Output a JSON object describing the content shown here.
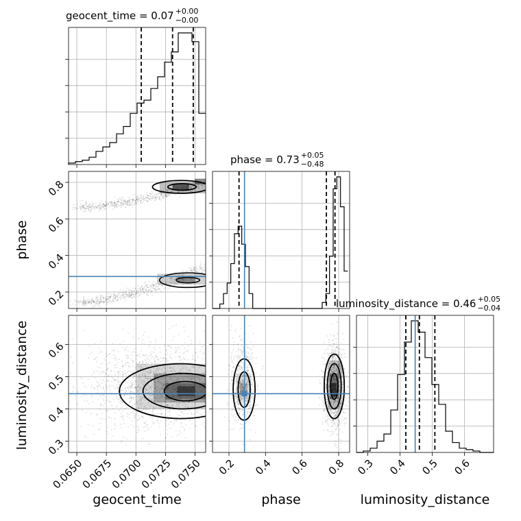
{
  "chart_data": {
    "type": "corner",
    "parameters": [
      "geocent_time",
      "phase",
      "luminosity_distance"
    ],
    "titles": [
      {
        "param": "geocent_time",
        "label": "geocent_time",
        "median": "0.07",
        "plus": "+0.00",
        "minus": "−0.00"
      },
      {
        "param": "phase",
        "label": "phase",
        "median": "0.73",
        "plus": "+0.05",
        "minus": "−0.48"
      },
      {
        "param": "luminosity_distance",
        "label": "luminosity_distance",
        "median": "0.46",
        "plus": "+0.05",
        "minus": "−0.04"
      }
    ],
    "axis_labels": {
      "x": [
        "geocent_time",
        "phase",
        "luminosity_distance"
      ],
      "y": [
        "phase",
        "luminosity_distance"
      ]
    },
    "ranges": {
      "geocent_time": [
        0.0643,
        0.0759
      ],
      "phase": [
        0.11,
        0.86
      ],
      "luminosity_distance": [
        0.265,
        0.69
      ]
    },
    "ticks": {
      "geocent_time": {
        "values": [
          0.065,
          0.0675,
          0.07,
          0.0725,
          0.075
        ],
        "labels": [
          "0.0650",
          "0.0675",
          "0.0700",
          "0.0725",
          "0.0750"
        ]
      },
      "phase_x": {
        "values": [
          0.2,
          0.4,
          0.6,
          0.8
        ],
        "labels": [
          "0.2",
          "0.4",
          "0.6",
          "0.8"
        ]
      },
      "phase_y": {
        "values": [
          0.2,
          0.4,
          0.6,
          0.8
        ],
        "labels": [
          "0.2",
          "0.4",
          "0.6",
          "0.8"
        ]
      },
      "luminosity_distance_x": {
        "values": [
          0.3,
          0.4,
          0.5,
          0.6
        ],
        "labels": [
          "0.3",
          "0.4",
          "0.5",
          "0.6"
        ]
      },
      "luminosity_distance_y": {
        "values": [
          0.3,
          0.4,
          0.5,
          0.6
        ],
        "labels": [
          "0.3",
          "0.4",
          "0.5",
          "0.6"
        ]
      }
    },
    "truths": {
      "phase": 0.285,
      "luminosity_distance": 0.447
    },
    "quantiles": {
      "geocent_time": [
        0.07045,
        0.0731,
        0.07485
      ],
      "phase": [
        0.255,
        0.733,
        0.78
      ],
      "luminosity_distance": [
        0.418,
        0.46,
        0.508
      ]
    },
    "histograms": {
      "geocent_time": {
        "edges": [
          0.0643,
          0.06488,
          0.06546,
          0.06604,
          0.06662,
          0.0672,
          0.06778,
          0.06836,
          0.06894,
          0.06952,
          0.0701,
          0.07068,
          0.07126,
          0.07184,
          0.07242,
          0.073,
          0.07358,
          0.07416,
          0.07474,
          0.07532,
          0.0759
        ],
        "counts": [
          1,
          2,
          3,
          5,
          9,
          12,
          15,
          21,
          26,
          35,
          42,
          44,
          52,
          60,
          70,
          77,
          90,
          90,
          84,
          35
        ]
      },
      "phase": {
        "edges": [
          0.11,
          0.13,
          0.15,
          0.17,
          0.19,
          0.21,
          0.23,
          0.25,
          0.27,
          0.29,
          0.31,
          0.33,
          0.35,
          0.37,
          0.39,
          0.41,
          0.43,
          0.45,
          0.47,
          0.49,
          0.51,
          0.53,
          0.55,
          0.57,
          0.59,
          0.61,
          0.63,
          0.65,
          0.67,
          0.69,
          0.71,
          0.73,
          0.75,
          0.77,
          0.79,
          0.81,
          0.83,
          0.85
        ],
        "counts": [
          0,
          0,
          3,
          10,
          17,
          30,
          50,
          55,
          43,
          28,
          10,
          0,
          0,
          0,
          0,
          0,
          0,
          0,
          0,
          0,
          0,
          0,
          0,
          0,
          0,
          0,
          0,
          0,
          0,
          0,
          4,
          10,
          35,
          80,
          88,
          68,
          25
        ]
      },
      "luminosity_distance": {
        "edges": [
          0.265,
          0.2863,
          0.3075,
          0.3288,
          0.35,
          0.3713,
          0.3925,
          0.4138,
          0.435,
          0.4563,
          0.4775,
          0.4988,
          0.52,
          0.5413,
          0.5625,
          0.5838,
          0.605,
          0.6263,
          0.6475,
          0.6688,
          0.69
        ],
        "counts": [
          0,
          1,
          3,
          8,
          13,
          30,
          55,
          78,
          93,
          85,
          67,
          48,
          34,
          15,
          7,
          3,
          2,
          1,
          0,
          0
        ]
      }
    }
  }
}
